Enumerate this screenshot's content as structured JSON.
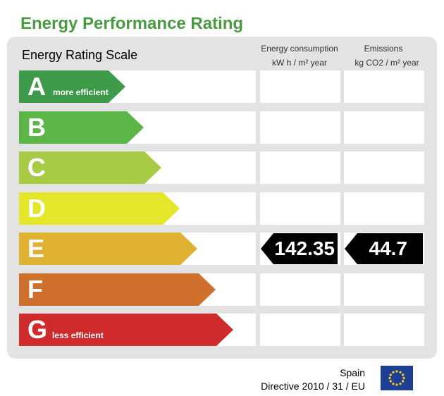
{
  "title": "Energy Performance Rating",
  "scale_title": "Energy Rating Scale",
  "columns": {
    "consumption": {
      "line1": "Energy consumption",
      "line2": "kW h / m² year"
    },
    "emissions": {
      "line1": "Emissions",
      "line2": "kg CO2 / m² year"
    }
  },
  "ratings": [
    {
      "letter": "A",
      "sub": "more efficient",
      "color": "#3e9b4a"
    },
    {
      "letter": "B",
      "sub": "",
      "color": "#5bb547"
    },
    {
      "letter": "C",
      "sub": "",
      "color": "#a7cb44"
    },
    {
      "letter": "D",
      "sub": "",
      "color": "#e4e62a"
    },
    {
      "letter": "E",
      "sub": "",
      "color": "#e0b233"
    },
    {
      "letter": "F",
      "sub": "",
      "color": "#cf712c"
    },
    {
      "letter": "G",
      "sub": "less efficient",
      "color": "#d02b2c"
    }
  ],
  "result": {
    "rating": "E",
    "consumption_value": "142.35",
    "emissions_value": "44.7"
  },
  "footer": {
    "country": "Spain",
    "directive": "Directive 2010 / 31 / EU",
    "flag_icon": "eu-flag-icon"
  }
}
